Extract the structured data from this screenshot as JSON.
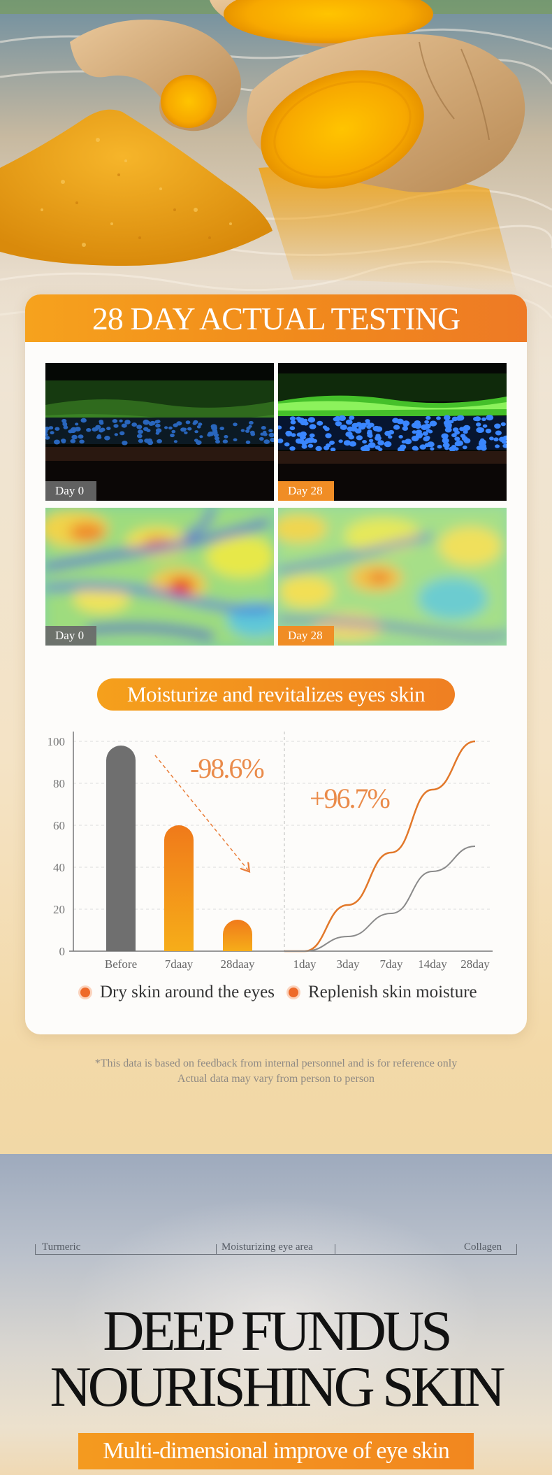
{
  "testing": {
    "title": "28 DAY ACTUAL TESTING",
    "tiles": [
      {
        "kind": "microscopy",
        "label": "Day 0"
      },
      {
        "kind": "microscopy",
        "label": "Day 28"
      },
      {
        "kind": "thermal",
        "label": "Day 0"
      },
      {
        "kind": "thermal",
        "label": "Day 28"
      }
    ]
  },
  "moisture": {
    "pill_label": "Moisturize and revitalizes eyes skin",
    "legend": [
      {
        "label": "Dry skin around the eyes",
        "color": "#ee6a2a"
      },
      {
        "label": "Replenish skin moisture",
        "color": "#ee6a2a"
      }
    ]
  },
  "chart_data": {
    "type": "bar+line",
    "title": "",
    "ylim": [
      0,
      100
    ],
    "yticks": [
      "0",
      "20",
      "40",
      "60",
      "80",
      "100"
    ],
    "bars": {
      "categories": [
        "Before",
        "7daay",
        "28daay"
      ],
      "values": [
        98,
        60,
        15
      ],
      "colors": [
        "#6f6f6f",
        "#f28c1c",
        "#f28c1c"
      ],
      "annotation": "-98.6%"
    },
    "lines": {
      "categories": [
        "1day",
        "3day",
        "7day",
        "14day",
        "28day"
      ],
      "series": [
        {
          "values": [
            0,
            22,
            47,
            77,
            100
          ],
          "color": "#e2782a"
        },
        {
          "values": [
            0,
            7,
            18,
            38,
            50
          ],
          "color": "#8a8a8a"
        }
      ],
      "annotation": "+96.7%"
    },
    "grid": true
  },
  "disclaimer": {
    "line1": "*This data is based on feedback from internal personnel and is for reference only",
    "line2": "Actual data may vary from person to person"
  },
  "feature": {
    "labels": [
      "Turmeric",
      "Moisturizing eye area",
      "Collagen"
    ],
    "headline_line1": "DEEP FUNDUS",
    "headline_line2": "NOURISHING SKIN",
    "subtitle": "Multi-dimensional improve of eye skin"
  }
}
